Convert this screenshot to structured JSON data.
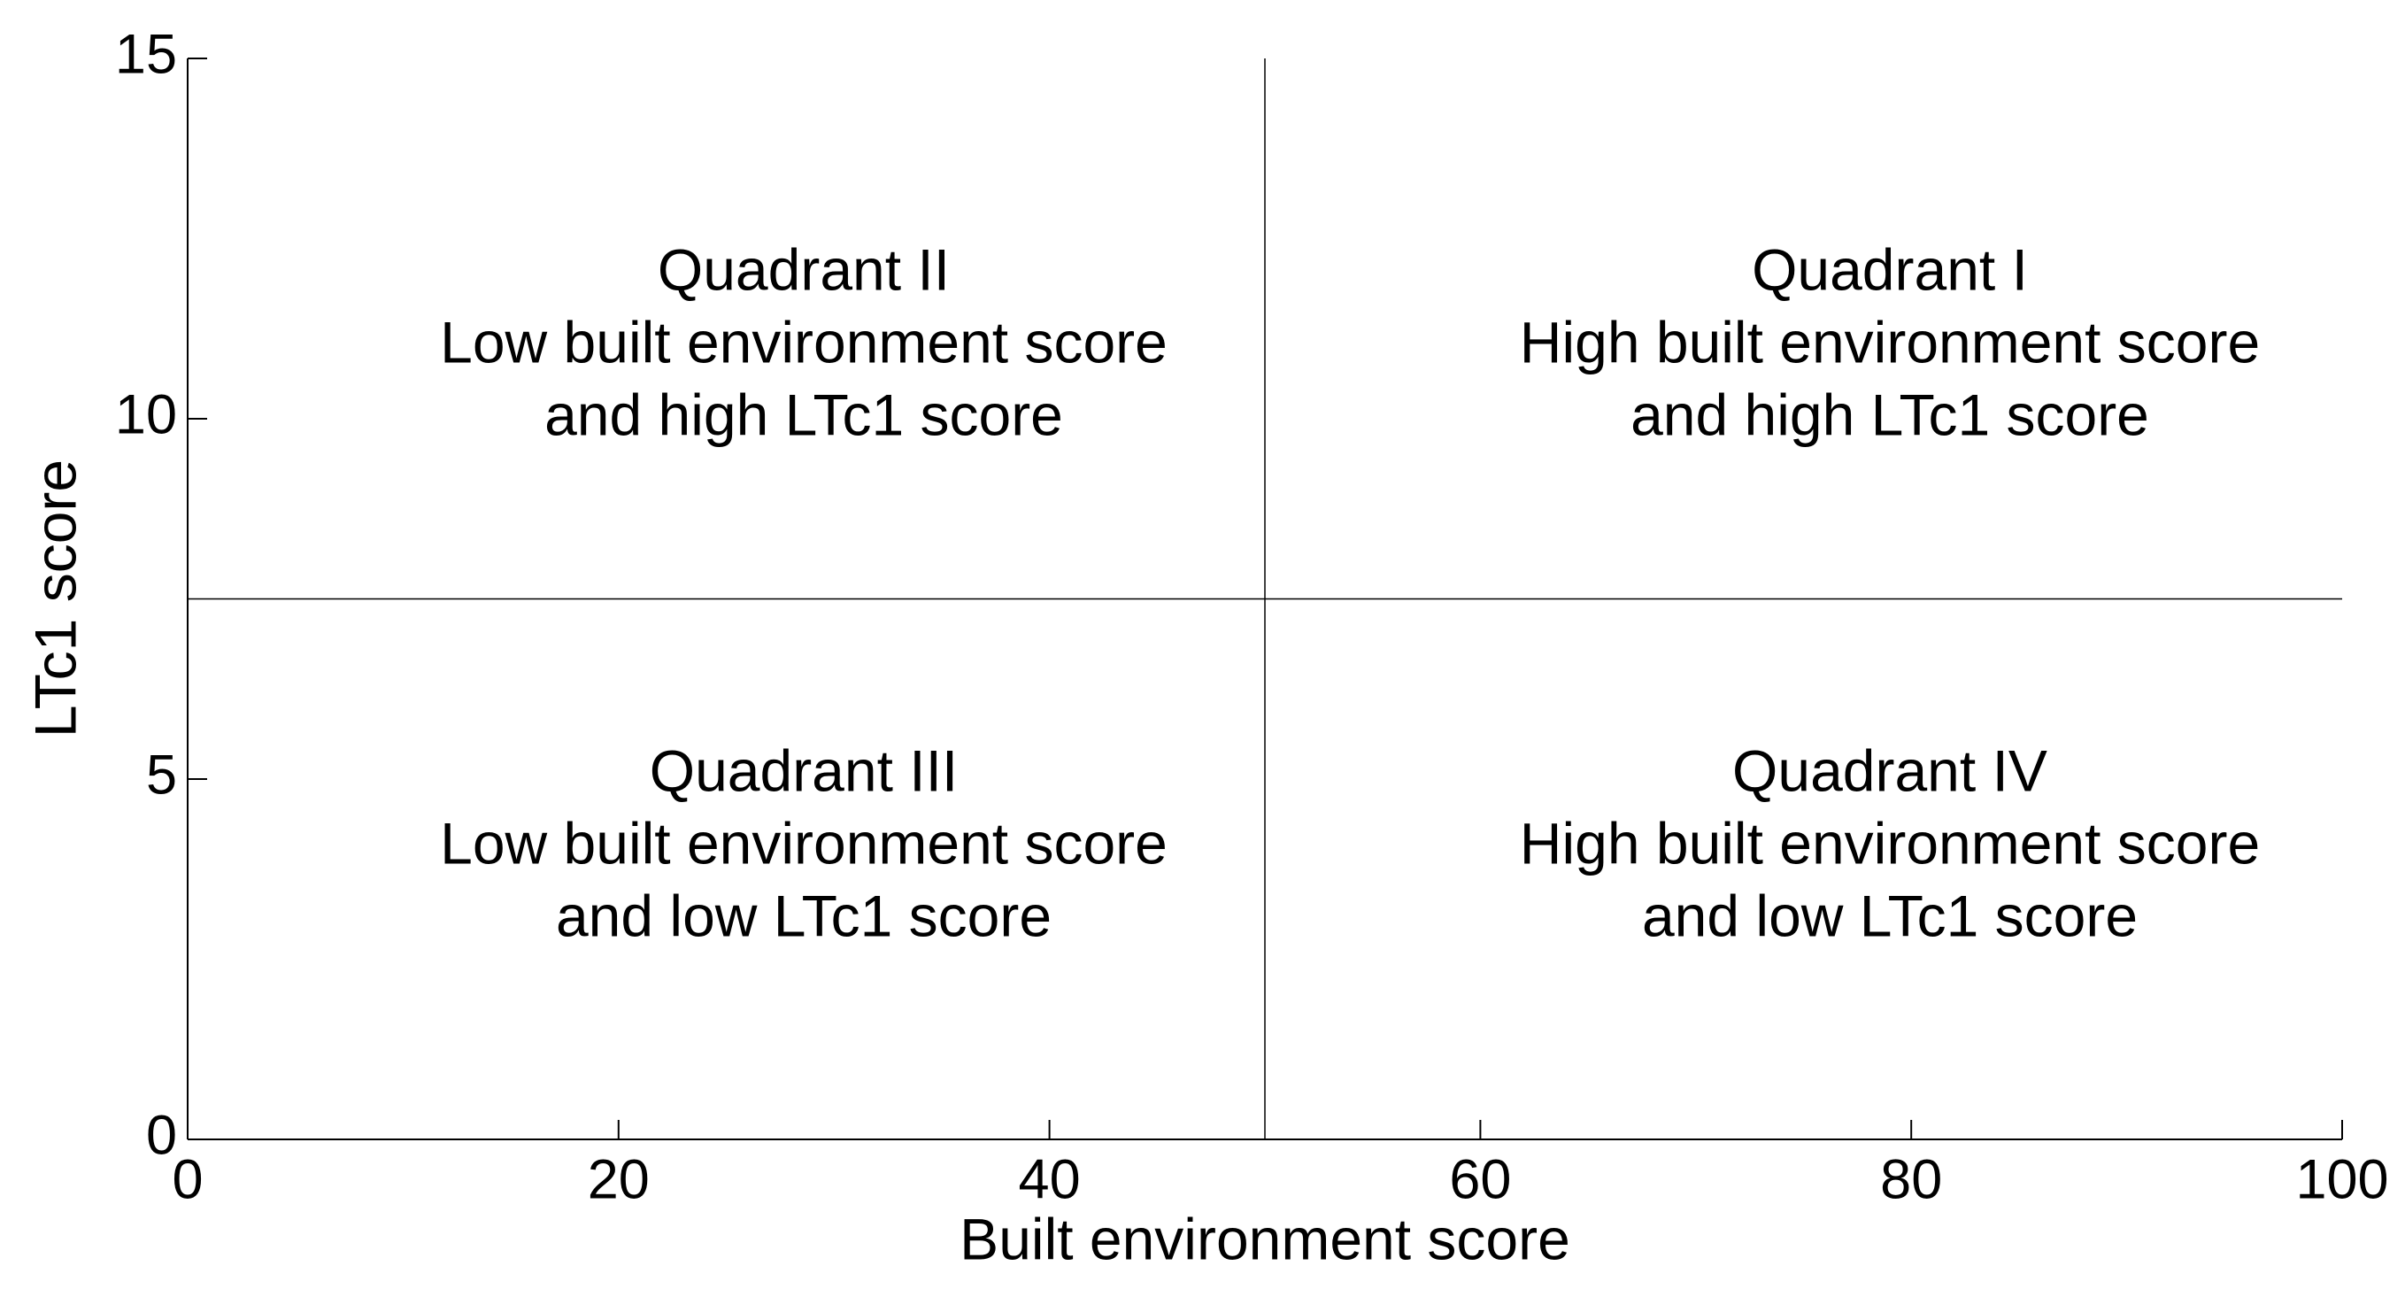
{
  "chart_data": {
    "type": "quadrant",
    "x_label": "Built environment score",
    "y_label": "LTc1 score",
    "xlim": [
      0,
      100
    ],
    "ylim": [
      0,
      15
    ],
    "xticks": [
      0,
      20,
      40,
      60,
      80,
      100
    ],
    "yticks": [
      0,
      5,
      10,
      15
    ],
    "dividers": {
      "x": 50,
      "y": 7.5
    },
    "annotations": [
      [
        "Quadrant I",
        "High built environment score",
        "and high LTc1 score"
      ],
      [
        "Quadrant II",
        "Low built environment score",
        "and high LTc1 score"
      ],
      [
        "Quadrant III",
        "Low built environment score",
        "and low LTc1 score"
      ],
      [
        "Quadrant IV",
        "High built environment score",
        "and low LTc1 score"
      ]
    ]
  }
}
